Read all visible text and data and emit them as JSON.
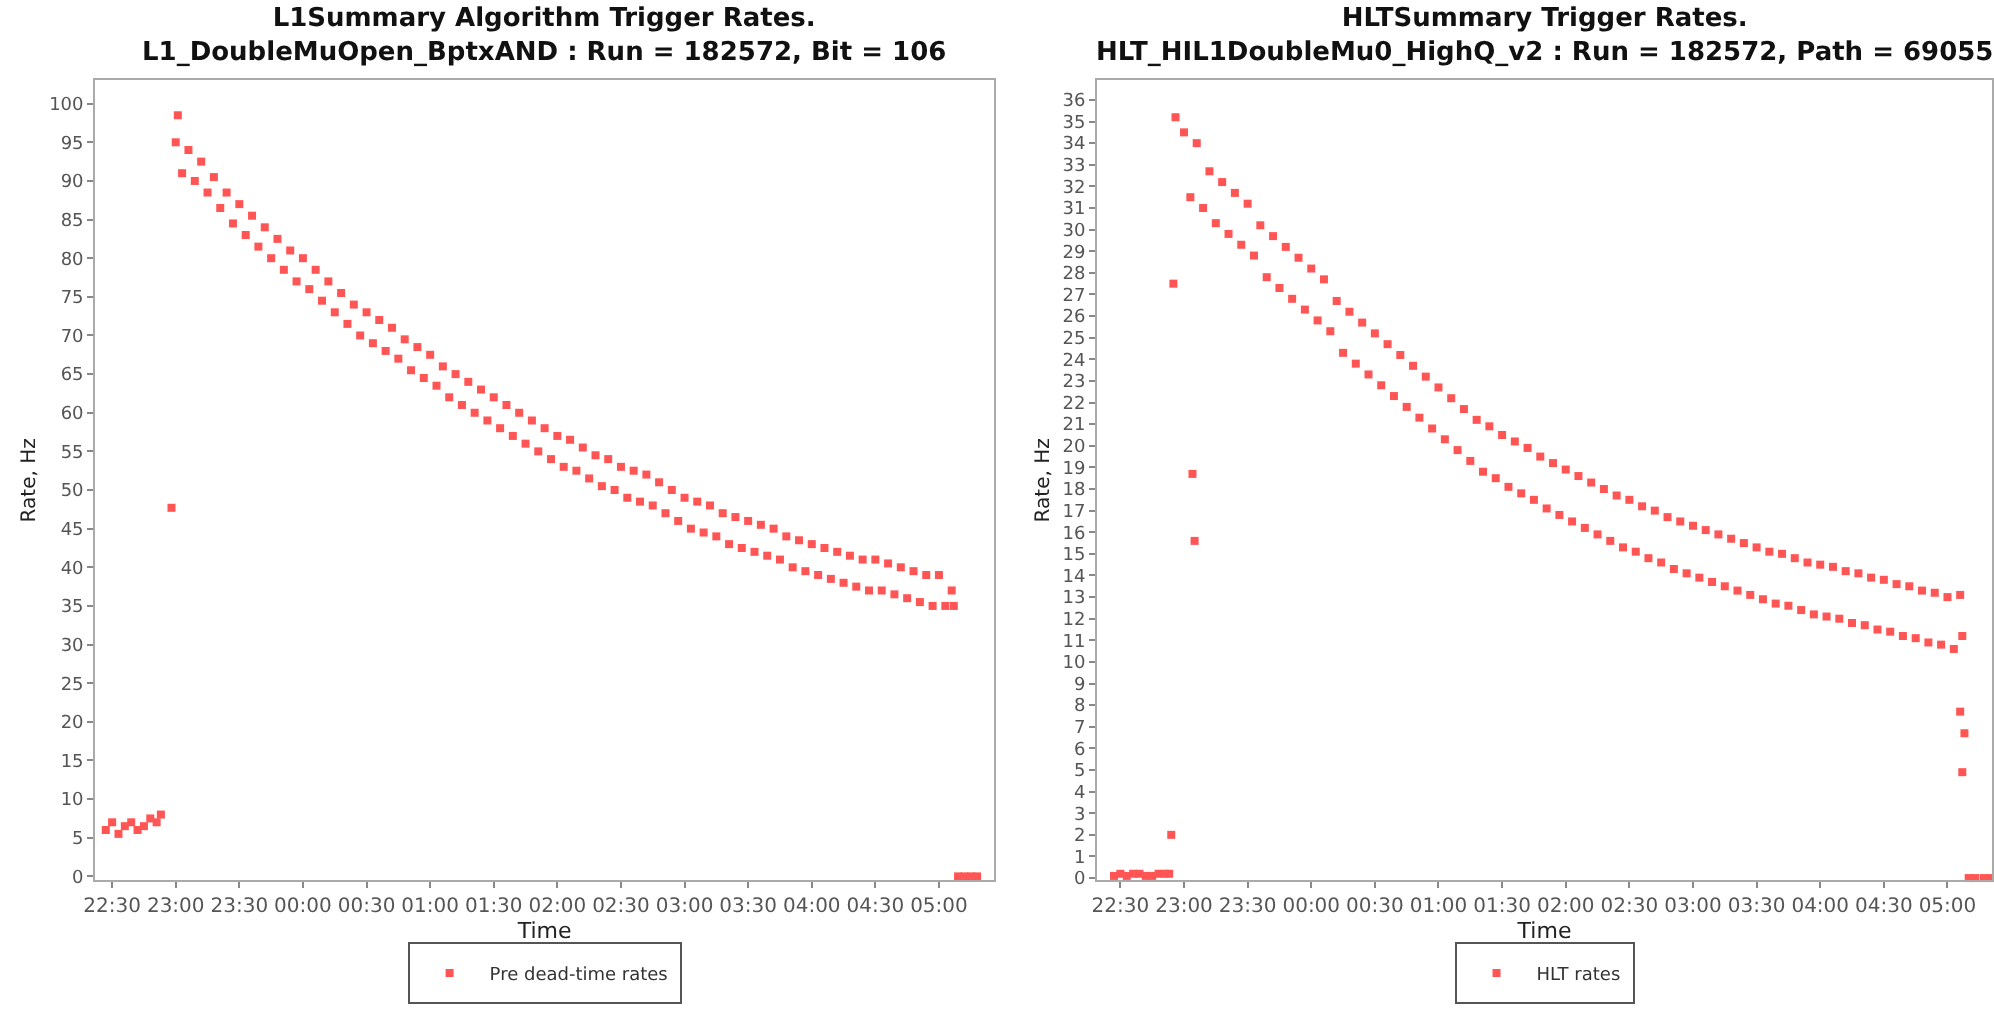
{
  "chart_data": [
    {
      "type": "scatter",
      "title": "L1Summary Algorithm Trigger Rates.",
      "subtitle": "L1_DoubleMuOpen_BptxAND : Run = 182572, Bit = 106",
      "xlabel": "Time",
      "ylabel": "Rate, Hz",
      "xlim": [
        "--11-15T22:22",
        "--11-16T05:26"
      ],
      "xticks": [
        {
          "value": "--11-15T22:30",
          "label": "22:30"
        },
        {
          "value": "--11-15T23:00",
          "label": "23:00"
        },
        {
          "value": "--11-15T23:30",
          "label": "23:30"
        },
        {
          "value": "--11-16T00:00",
          "label": "00:00"
        },
        {
          "value": "--11-16T00:30",
          "label": "00:30"
        },
        {
          "value": "--11-16T01:00",
          "label": "01:00"
        },
        {
          "value": "--11-16T01:30",
          "label": "01:30"
        },
        {
          "value": "--11-16T02:00",
          "label": "02:00"
        },
        {
          "value": "--11-16T02:30",
          "label": "02:30"
        },
        {
          "value": "--11-16T03:00",
          "label": "03:00"
        },
        {
          "value": "--11-16T03:30",
          "label": "03:30"
        },
        {
          "value": "--11-16T04:00",
          "label": "04:00"
        },
        {
          "value": "--11-16T04:30",
          "label": "04:30"
        },
        {
          "value": "--11-16T05:00",
          "label": "05:00"
        }
      ],
      "ylim": [
        -0.5,
        103
      ],
      "yticks": [
        0,
        5,
        10,
        15,
        20,
        25,
        30,
        35,
        40,
        45,
        50,
        55,
        60,
        65,
        70,
        75,
        80,
        85,
        90,
        95,
        100
      ],
      "legend": "bottom",
      "marker": "square",
      "series": [
        {
          "name": "Pre dead-time rates",
          "color": "#ff5555",
          "x": [
            "--11-15T22:27",
            "--11-15T22:30",
            "--11-15T22:33",
            "--11-15T22:36",
            "--11-15T22:39",
            "--11-15T22:42",
            "--11-15T22:45",
            "--11-15T22:48",
            "--11-15T22:51",
            "--11-15T22:53",
            "--11-15T22:58",
            "--11-15T23:01",
            "--11-15T23:00",
            "--11-15T23:03",
            "--11-15T23:06",
            "--11-15T23:09",
            "--11-15T23:12",
            "--11-15T23:15",
            "--11-15T23:18",
            "--11-15T23:21",
            "--11-15T23:24",
            "--11-15T23:27",
            "--11-15T23:30",
            "--11-15T23:33",
            "--11-15T23:36",
            "--11-15T23:39",
            "--11-15T23:42",
            "--11-15T23:45",
            "--11-15T23:48",
            "--11-15T23:51",
            "--11-15T23:54",
            "--11-15T23:57",
            "--11-16T00:00",
            "--11-16T00:03",
            "--11-16T00:06",
            "--11-16T00:09",
            "--11-16T00:12",
            "--11-16T00:15",
            "--11-16T00:18",
            "--11-16T00:21",
            "--11-16T00:24",
            "--11-16T00:27",
            "--11-16T00:30",
            "--11-16T00:33",
            "--11-16T00:36",
            "--11-16T00:39",
            "--11-16T00:42",
            "--11-16T00:45",
            "--11-16T00:48",
            "--11-16T00:51",
            "--11-16T00:54",
            "--11-16T00:57",
            "--11-16T01:00",
            "--11-16T01:03",
            "--11-16T01:06",
            "--11-16T01:09",
            "--11-16T01:12",
            "--11-16T01:15",
            "--11-16T01:18",
            "--11-16T01:21",
            "--11-16T01:24",
            "--11-16T01:27",
            "--11-16T01:30",
            "--11-16T01:33",
            "--11-16T01:36",
            "--11-16T01:39",
            "--11-16T01:42",
            "--11-16T01:45",
            "--11-16T01:48",
            "--11-16T01:51",
            "--11-16T01:54",
            "--11-16T01:57",
            "--11-16T02:00",
            "--11-16T02:03",
            "--11-16T02:06",
            "--11-16T02:09",
            "--11-16T02:12",
            "--11-16T02:15",
            "--11-16T02:18",
            "--11-16T02:21",
            "--11-16T02:24",
            "--11-16T02:27",
            "--11-16T02:30",
            "--11-16T02:33",
            "--11-16T02:36",
            "--11-16T02:39",
            "--11-16T02:42",
            "--11-16T02:45",
            "--11-16T02:48",
            "--11-16T02:51",
            "--11-16T02:54",
            "--11-16T02:57",
            "--11-16T03:00",
            "--11-16T03:03",
            "--11-16T03:06",
            "--11-16T03:09",
            "--11-16T03:12",
            "--11-16T03:15",
            "--11-16T03:18",
            "--11-16T03:21",
            "--11-16T03:24",
            "--11-16T03:27",
            "--11-16T03:30",
            "--11-16T03:33",
            "--11-16T03:36",
            "--11-16T03:39",
            "--11-16T03:42",
            "--11-16T03:45",
            "--11-16T03:48",
            "--11-16T03:51",
            "--11-16T03:54",
            "--11-16T03:57",
            "--11-16T04:00",
            "--11-16T04:03",
            "--11-16T04:06",
            "--11-16T04:09",
            "--11-16T04:12",
            "--11-16T04:15",
            "--11-16T04:18",
            "--11-16T04:21",
            "--11-16T04:24",
            "--11-16T04:27",
            "--11-16T04:30",
            "--11-16T04:33",
            "--11-16T04:36",
            "--11-16T04:39",
            "--11-16T04:42",
            "--11-16T04:45",
            "--11-16T04:48",
            "--11-16T04:51",
            "--11-16T04:54",
            "--11-16T04:57",
            "--11-16T05:00",
            "--11-16T05:03",
            "--11-16T05:06",
            "--11-16T05:07",
            "--11-16T05:09",
            "--11-16T05:12",
            "--11-16T05:15",
            "--11-16T05:18"
          ],
          "values": [
            6,
            7,
            5.5,
            6.5,
            7,
            6,
            6.5,
            7.5,
            7,
            8,
            47.7,
            98.5,
            95,
            91,
            94,
            90,
            92.5,
            88.5,
            90.5,
            86.5,
            88.5,
            84.5,
            87,
            83,
            85.5,
            81.5,
            84,
            80,
            82.5,
            78.5,
            81,
            77,
            80,
            76,
            78.5,
            74.5,
            77,
            73,
            75.5,
            71.5,
            74,
            70,
            73,
            69,
            72,
            68,
            71,
            67,
            69.5,
            65.5,
            68.5,
            64.5,
            67.5,
            63.5,
            66,
            62,
            65,
            61,
            64,
            60,
            63,
            59,
            62,
            58,
            61,
            57,
            60,
            56,
            59,
            55,
            58,
            54,
            57,
            53,
            56.5,
            52.5,
            55.5,
            51.5,
            54.5,
            50.5,
            54,
            50,
            53,
            49,
            52.5,
            48.5,
            52,
            48,
            51,
            47,
            50,
            46,
            49,
            45,
            48.5,
            44.5,
            48,
            44,
            47,
            43,
            46.5,
            42.5,
            46,
            42,
            45.5,
            41.5,
            45,
            41,
            44,
            40,
            43.5,
            39.5,
            43,
            39,
            42.5,
            38.5,
            42,
            38,
            41.5,
            37.5,
            41,
            37,
            41,
            37,
            40.5,
            36.5,
            40,
            36,
            39.5,
            35.5,
            39,
            35,
            39,
            35,
            37,
            35,
            0,
            0,
            0,
            0
          ]
        }
      ]
    },
    {
      "type": "scatter",
      "title": "HLTSummary Trigger Rates.",
      "subtitle": "HLT_HIL1DoubleMu0_HighQ_v2 : Run = 182572, Path = 69055",
      "xlabel": "Time",
      "ylabel": "Rate, Hz",
      "xlim": [
        "--11-15T22:19",
        "--11-16T05:21"
      ],
      "xticks": [
        {
          "value": "--11-15T22:30",
          "label": "22:30"
        },
        {
          "value": "--11-15T23:00",
          "label": "23:00"
        },
        {
          "value": "--11-15T23:30",
          "label": "23:30"
        },
        {
          "value": "--11-16T00:00",
          "label": "00:00"
        },
        {
          "value": "--11-16T00:30",
          "label": "00:30"
        },
        {
          "value": "--11-16T01:00",
          "label": "01:00"
        },
        {
          "value": "--11-16T01:30",
          "label": "01:30"
        },
        {
          "value": "--11-16T02:00",
          "label": "02:00"
        },
        {
          "value": "--11-16T02:30",
          "label": "02:30"
        },
        {
          "value": "--11-16T03:00",
          "label": "03:00"
        },
        {
          "value": "--11-16T03:30",
          "label": "03:30"
        },
        {
          "value": "--11-16T04:00",
          "label": "04:00"
        },
        {
          "value": "--11-16T04:30",
          "label": "04:30"
        },
        {
          "value": "--11-16T05:00",
          "label": "05:00"
        }
      ],
      "ylim": [
        -0.1,
        36.9
      ],
      "yticks": [
        0,
        1,
        2,
        3,
        4,
        5,
        6,
        7,
        8,
        9,
        10,
        11,
        12,
        13,
        14,
        15,
        16,
        17,
        18,
        19,
        20,
        21,
        22,
        23,
        24,
        25,
        26,
        27,
        28,
        29,
        30,
        31,
        32,
        33,
        34,
        35,
        36
      ],
      "legend": "bottom",
      "marker": "square",
      "series": [
        {
          "name": "HLT rates",
          "color": "#ff5555",
          "x": [
            "--11-15T22:27",
            "--11-15T22:30",
            "--11-15T22:33",
            "--11-15T22:36",
            "--11-15T22:39",
            "--11-15T22:42",
            "--11-15T22:45",
            "--11-15T22:48",
            "--11-15T22:51",
            "--11-15T22:53",
            "--11-15T22:54",
            "--11-15T22:55",
            "--11-15T22:56",
            "--11-15T23:04",
            "--11-15T23:05",
            "--11-15T23:00",
            "--11-15T23:03",
            "--11-15T23:06",
            "--11-15T23:09",
            "--11-15T23:12",
            "--11-15T23:15",
            "--11-15T23:18",
            "--11-15T23:21",
            "--11-15T23:24",
            "--11-15T23:27",
            "--11-15T23:30",
            "--11-15T23:33",
            "--11-15T23:36",
            "--11-15T23:39",
            "--11-15T23:42",
            "--11-15T23:45",
            "--11-15T23:48",
            "--11-15T23:51",
            "--11-15T23:54",
            "--11-15T23:57",
            "--11-16T00:00",
            "--11-16T00:03",
            "--11-16T00:06",
            "--11-16T00:09",
            "--11-16T00:12",
            "--11-16T00:15",
            "--11-16T00:18",
            "--11-16T00:21",
            "--11-16T00:24",
            "--11-16T00:27",
            "--11-16T00:30",
            "--11-16T00:33",
            "--11-16T00:36",
            "--11-16T00:39",
            "--11-16T00:42",
            "--11-16T00:45",
            "--11-16T00:48",
            "--11-16T00:51",
            "--11-16T00:54",
            "--11-16T00:57",
            "--11-16T01:00",
            "--11-16T01:03",
            "--11-16T01:06",
            "--11-16T01:09",
            "--11-16T01:12",
            "--11-16T01:15",
            "--11-16T01:18",
            "--11-16T01:21",
            "--11-16T01:24",
            "--11-16T01:27",
            "--11-16T01:30",
            "--11-16T01:33",
            "--11-16T01:36",
            "--11-16T01:39",
            "--11-16T01:42",
            "--11-16T01:45",
            "--11-16T01:48",
            "--11-16T01:51",
            "--11-16T01:54",
            "--11-16T01:57",
            "--11-16T02:00",
            "--11-16T02:03",
            "--11-16T02:06",
            "--11-16T02:09",
            "--11-16T02:12",
            "--11-16T02:15",
            "--11-16T02:18",
            "--11-16T02:21",
            "--11-16T02:24",
            "--11-16T02:27",
            "--11-16T02:30",
            "--11-16T02:33",
            "--11-16T02:36",
            "--11-16T02:39",
            "--11-16T02:42",
            "--11-16T02:45",
            "--11-16T02:48",
            "--11-16T02:51",
            "--11-16T02:54",
            "--11-16T02:57",
            "--11-16T03:00",
            "--11-16T03:03",
            "--11-16T03:06",
            "--11-16T03:09",
            "--11-16T03:12",
            "--11-16T03:15",
            "--11-16T03:18",
            "--11-16T03:21",
            "--11-16T03:24",
            "--11-16T03:27",
            "--11-16T03:30",
            "--11-16T03:33",
            "--11-16T03:36",
            "--11-16T03:39",
            "--11-16T03:42",
            "--11-16T03:45",
            "--11-16T03:48",
            "--11-16T03:51",
            "--11-16T03:54",
            "--11-16T03:57",
            "--11-16T04:00",
            "--11-16T04:03",
            "--11-16T04:06",
            "--11-16T04:09",
            "--11-16T04:12",
            "--11-16T04:15",
            "--11-16T04:18",
            "--11-16T04:21",
            "--11-16T04:24",
            "--11-16T04:27",
            "--11-16T04:30",
            "--11-16T04:33",
            "--11-16T04:36",
            "--11-16T04:39",
            "--11-16T04:42",
            "--11-16T04:45",
            "--11-16T04:48",
            "--11-16T04:51",
            "--11-16T04:54",
            "--11-16T04:57",
            "--11-16T05:00",
            "--11-16T05:03",
            "--11-16T05:06",
            "--11-16T05:07",
            "--11-16T05:06",
            "--11-16T05:07",
            "--11-16T05:08",
            "--11-16T05:10",
            "--11-16T05:13",
            "--11-16T05:17",
            "--11-16T05:20"
          ],
          "values": [
            0.1,
            0.2,
            0.1,
            0.2,
            0.2,
            0.1,
            0.1,
            0.2,
            0.2,
            0.2,
            2,
            27.5,
            35.2,
            18.7,
            15.6,
            34.5,
            31.5,
            34,
            31,
            32.7,
            30.3,
            32.2,
            29.8,
            31.7,
            29.3,
            31.2,
            28.8,
            30.2,
            27.8,
            29.7,
            27.3,
            29.2,
            26.8,
            28.7,
            26.3,
            28.2,
            25.8,
            27.7,
            25.3,
            26.7,
            24.3,
            26.2,
            23.8,
            25.7,
            23.3,
            25.2,
            22.8,
            24.7,
            22.3,
            24.2,
            21.8,
            23.7,
            21.3,
            23.2,
            20.8,
            22.7,
            20.3,
            22.2,
            19.8,
            21.7,
            19.3,
            21.2,
            18.8,
            20.9,
            18.5,
            20.5,
            18.1,
            20.2,
            17.8,
            19.9,
            17.5,
            19.5,
            17.1,
            19.2,
            16.8,
            18.9,
            16.5,
            18.6,
            16.2,
            18.3,
            15.9,
            18,
            15.6,
            17.7,
            15.3,
            17.5,
            15.1,
            17.2,
            14.8,
            17,
            14.6,
            16.7,
            14.3,
            16.5,
            14.1,
            16.3,
            13.9,
            16.1,
            13.7,
            15.9,
            13.5,
            15.7,
            13.3,
            15.5,
            13.1,
            15.3,
            12.9,
            15.1,
            12.7,
            15,
            12.6,
            14.8,
            12.4,
            14.6,
            12.2,
            14.5,
            12.1,
            14.4,
            12,
            14.2,
            11.8,
            14.1,
            11.7,
            13.9,
            11.5,
            13.8,
            11.4,
            13.6,
            11.2,
            13.5,
            11.1,
            13.3,
            10.9,
            13.2,
            10.8,
            13,
            10.6,
            13.1,
            11.2,
            7.7,
            4.9,
            6.7,
            0,
            0,
            0,
            0
          ]
        }
      ]
    }
  ]
}
